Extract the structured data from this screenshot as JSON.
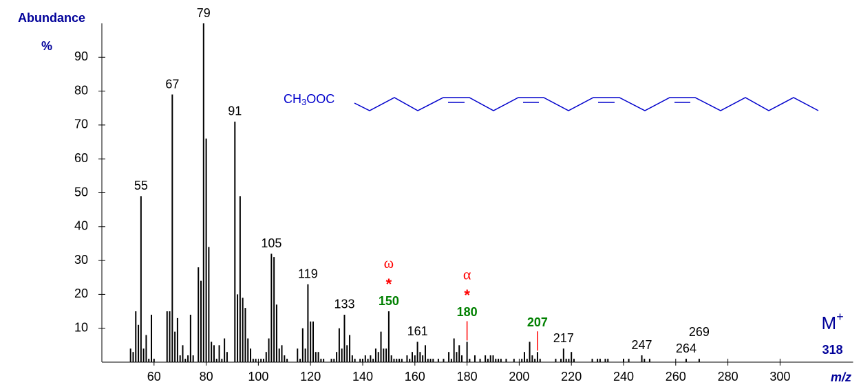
{
  "chart_data": {
    "type": "bar",
    "y_title": "Abundance",
    "y_unit": "%",
    "x_title": "m/z",
    "xlim": [
      40,
      328
    ],
    "ylim": [
      0,
      100
    ],
    "xticks": [
      60,
      80,
      100,
      120,
      140,
      160,
      180,
      200,
      220,
      240,
      260,
      280,
      300
    ],
    "yticks": [
      10,
      20,
      30,
      40,
      50,
      60,
      70,
      80,
      90
    ],
    "color": "#000000",
    "x": [
      51,
      52,
      53,
      54,
      55,
      56,
      57,
      58,
      59,
      60,
      65,
      66,
      67,
      68,
      69,
      70,
      71,
      72,
      73,
      74,
      75,
      77,
      78,
      79,
      80,
      81,
      82,
      83,
      84,
      85,
      86,
      87,
      88,
      91,
      92,
      93,
      94,
      95,
      96,
      97,
      98,
      99,
      101,
      102,
      103,
      104,
      105,
      106,
      107,
      108,
      109,
      110,
      111,
      115,
      116,
      117,
      118,
      119,
      120,
      121,
      122,
      123,
      124,
      125,
      128,
      129,
      130,
      131,
      132,
      133,
      134,
      135,
      136,
      137,
      139,
      140,
      141,
      142,
      143,
      144,
      145,
      146,
      147,
      148,
      149,
      150,
      151,
      152,
      153,
      154,
      155,
      157,
      158,
      159,
      160,
      161,
      162,
      163,
      164,
      165,
      166,
      167,
      169,
      171,
      173,
      174,
      175,
      176,
      177,
      178,
      180,
      181,
      183,
      185,
      187,
      188,
      189,
      190,
      191,
      192,
      193,
      195,
      198,
      201,
      202,
      203,
      204,
      205,
      206,
      207,
      208,
      214,
      216,
      217,
      218,
      219,
      220,
      221,
      228,
      230,
      231,
      233,
      234,
      240,
      242,
      247,
      248,
      250,
      264,
      269
    ],
    "values": [
      4,
      3,
      15,
      11,
      49,
      4,
      8,
      1,
      14,
      1,
      15,
      15,
      79,
      9,
      13,
      2,
      5,
      1,
      2,
      14,
      2,
      28,
      24,
      100,
      66,
      34,
      6,
      5,
      1,
      5,
      1,
      7,
      3,
      71,
      20,
      49,
      19,
      16,
      7,
      4,
      1,
      1,
      1,
      1,
      3,
      7,
      32,
      31,
      17,
      4,
      5,
      2,
      1,
      4,
      1,
      10,
      4,
      23,
      12,
      12,
      3,
      3,
      1,
      1,
      1,
      1,
      3,
      10,
      4,
      14,
      5,
      8,
      2,
      1,
      1,
      1,
      2,
      1,
      2,
      1,
      4,
      3,
      9,
      4,
      4,
      15,
      2,
      1,
      1,
      1,
      1,
      2,
      1,
      3,
      2,
      6,
      3,
      2,
      5,
      1,
      1,
      1,
      1,
      1,
      3,
      1,
      7,
      3,
      5,
      2,
      6,
      1,
      2,
      1,
      2,
      1,
      2,
      2,
      1,
      1,
      1,
      1,
      1,
      1,
      3,
      1,
      6,
      2,
      1,
      3,
      1,
      1,
      1,
      4,
      1,
      1,
      3,
      1,
      1,
      1,
      1,
      1,
      1,
      1,
      1,
      2,
      1,
      1,
      1,
      1
    ],
    "peak_labels": [
      55,
      67,
      79,
      91,
      105,
      119,
      133,
      161,
      217,
      247,
      264,
      269
    ],
    "annotations": [
      {
        "label": 150,
        "symbol": "ω",
        "mark": "*"
      },
      {
        "label": 180,
        "symbol": "α",
        "mark": "*"
      },
      {
        "label": 207
      }
    ],
    "molecular_ion": {
      "label": "M",
      "superscript": "+",
      "value": 318
    },
    "structure": {
      "prefix": "CH",
      "subscript": "3",
      "suffix": "OOC"
    }
  }
}
